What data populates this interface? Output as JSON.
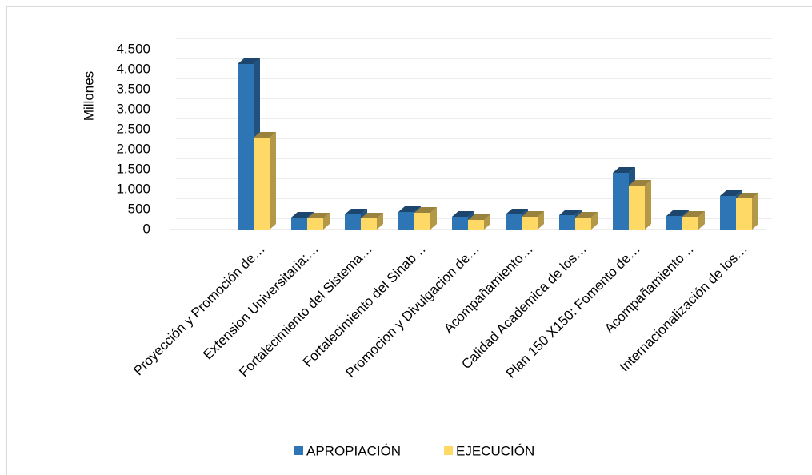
{
  "chart_data": {
    "type": "bar3d",
    "y_label": "Millones",
    "categories": [
      "Proyección y Promoción de…",
      "Extension  Universitaria:…",
      "Fortalecimiento del  Sistema…",
      "Fortalecimiento del  Sinab…",
      "Promocion y Divulgacion de…",
      "Acompañamiento…",
      "Calidad Academica de los…",
      "Plan  150 X150: Fomento de…",
      "Acompañamiento…",
      "Internacionalización de los…"
    ],
    "series": [
      {
        "name": "APROPIACIÓN",
        "color": "#2e75b6",
        "values": [
          4140,
          300,
          380,
          440,
          320,
          380,
          360,
          1420,
          340,
          840
        ]
      },
      {
        "name": "EJECUCIÓN",
        "color": "#ffd966",
        "values": [
          2300,
          280,
          280,
          420,
          240,
          320,
          300,
          1100,
          320,
          780
        ]
      }
    ],
    "ylim": [
      0,
      4500
    ],
    "yticks": [
      0,
      500,
      {
        "value": 1000,
        "label": "1.000"
      },
      {
        "value": 1500,
        "label": "1.500"
      },
      {
        "value": 2000,
        "label": "2.000"
      },
      {
        "value": 2500,
        "label": "2.500"
      },
      {
        "value": 3000,
        "label": "3.000"
      },
      {
        "value": 3500,
        "label": "3.500"
      },
      {
        "value": 4000,
        "label": "4.000"
      },
      {
        "value": 4500,
        "label": "4.500"
      }
    ],
    "grid": true
  }
}
